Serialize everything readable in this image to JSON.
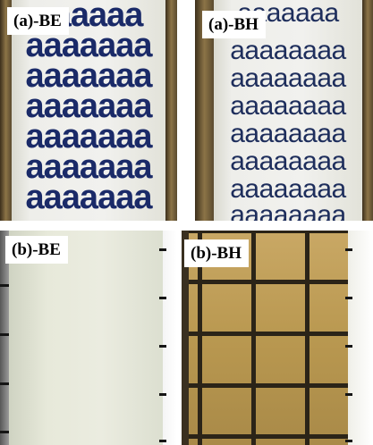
{
  "panels": {
    "a_be": {
      "label": "(a)-BE",
      "rows": [
        "aaaaaa",
        "aaaaaaa",
        "aaaaaaa",
        "aaaaaaa",
        "aaaaaaa",
        "aaaaaaa",
        "aaaaaaa"
      ]
    },
    "a_bh": {
      "label": "(a)-BH",
      "rows": [
        "aaaaaaa",
        "aaaaaaaa",
        "aaaaaaaa",
        "aaaaaaaa",
        "aaaaaaaa",
        "aaaaaaaa",
        "aaaaaaaa",
        "aaaaaaaa"
      ]
    },
    "b_be": {
      "label": "(b)-BE"
    },
    "b_bh": {
      "label": "(b)-BH"
    }
  },
  "colors": {
    "letters": "#1a2a68",
    "film_tan": "#b99850",
    "grid": "#2b2418"
  }
}
